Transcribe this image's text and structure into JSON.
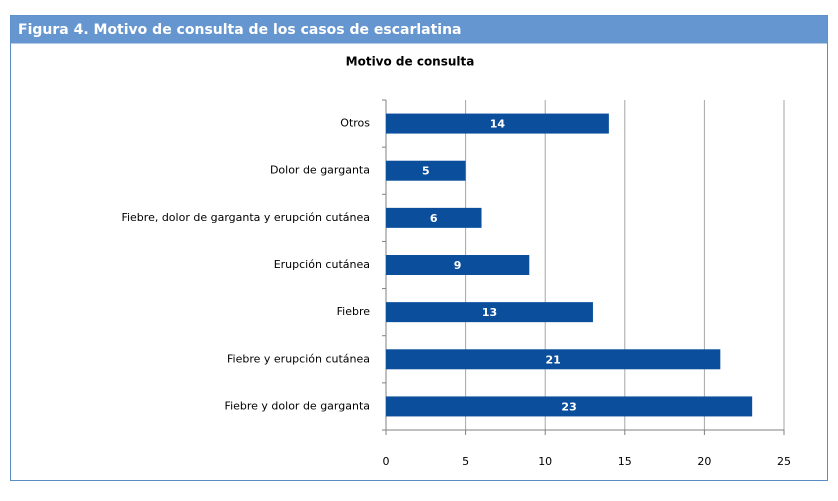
{
  "chart_data": {
    "type": "bar",
    "orientation": "horizontal",
    "figure_title": "Figura 4. Motivo de consulta de los casos de escarlatina",
    "title": "Motivo de consulta",
    "categories": [
      "Otros",
      "Dolor de garganta",
      "Fiebre, dolor de garganta y erupción cutánea",
      "Erupción cutánea",
      "Fiebre",
      "Fiebre y erupción cutánea",
      "Fiebre y dolor de garganta"
    ],
    "values": [
      14,
      5,
      6,
      9,
      13,
      21,
      23
    ],
    "color": "#0b4f9c",
    "xlim": [
      0,
      25
    ],
    "xticks": [
      0,
      5,
      10,
      15,
      20,
      25
    ],
    "grid": true
  }
}
